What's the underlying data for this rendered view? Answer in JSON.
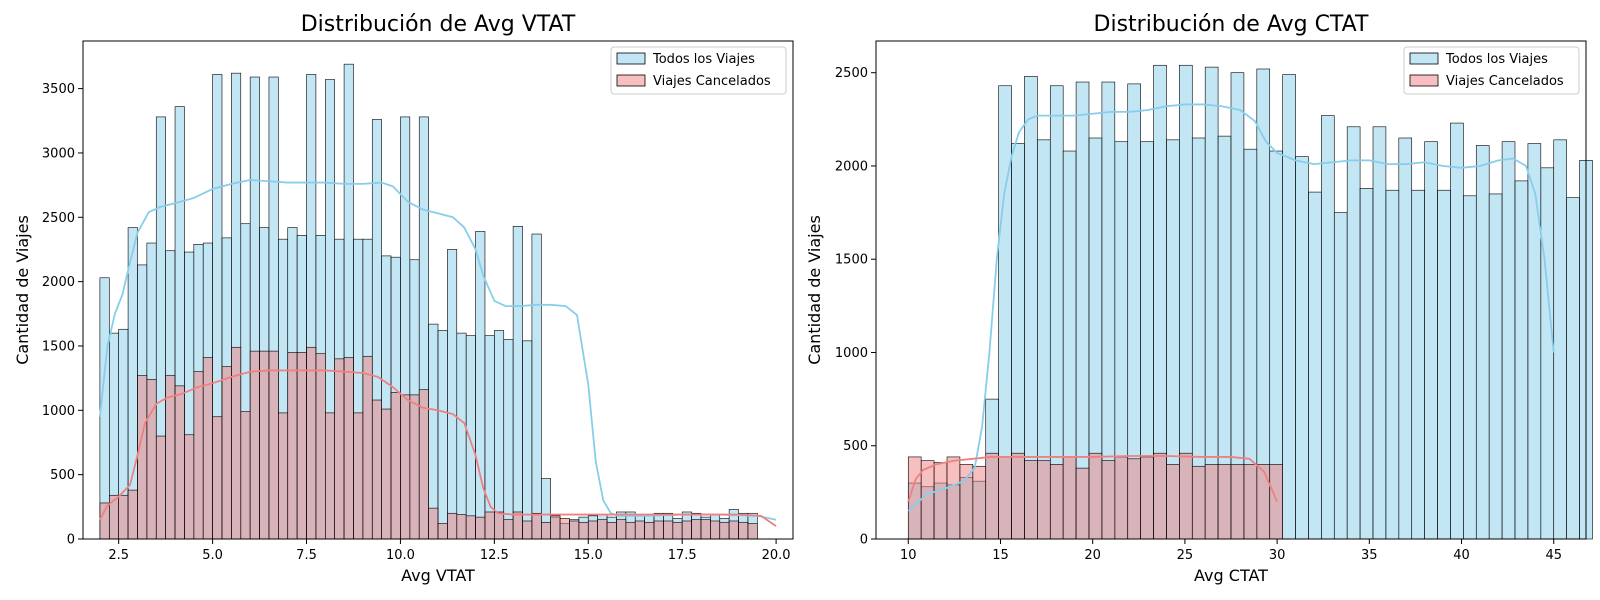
{
  "chart_data": [
    {
      "type": "histogram",
      "title": "Distribución de Avg VTAT",
      "xlabel": "Avg VTAT",
      "ylabel": "Cantidad de Viajes",
      "xlim": [
        1.55,
        20.45
      ],
      "ylim": [
        0,
        3870
      ],
      "xticks": [
        2.5,
        5.0,
        7.5,
        10.0,
        12.5,
        15.0,
        17.5,
        20.0
      ],
      "xtick_labels": [
        "2.5",
        "5.0",
        "7.5",
        "10.0",
        "12.5",
        "15.0",
        "17.5",
        "20.0"
      ],
      "yticks": [
        0,
        500,
        1000,
        1500,
        2000,
        2500,
        3000,
        3500
      ],
      "bin_start": 2.0,
      "bin_width": 0.25,
      "legend_position": "upper-right",
      "grid": false,
      "series": [
        {
          "name": "Todos los Viajes",
          "color": "#87CEEB",
          "values": [
            2030,
            1600,
            1630,
            2420,
            2130,
            2300,
            3280,
            2240,
            3360,
            2230,
            2290,
            2300,
            3610,
            2340,
            3620,
            2450,
            3590,
            2420,
            3590,
            2330,
            2420,
            2360,
            3610,
            2360,
            3570,
            2330,
            3690,
            2330,
            2330,
            3260,
            2200,
            2190,
            3280,
            2170,
            3280,
            1670,
            1620,
            2250,
            1600,
            1580,
            2390,
            1580,
            1620,
            1550,
            2430,
            1540,
            2370,
            470,
            170,
            120,
            150,
            170,
            180,
            190,
            170,
            210,
            210,
            180,
            190,
            200,
            200,
            160,
            210,
            200,
            170,
            190,
            160,
            230,
            200,
            200
          ],
          "kde": [
            [
              2.0,
              950
            ],
            [
              2.2,
              1500
            ],
            [
              2.4,
              1750
            ],
            [
              2.6,
              1900
            ],
            [
              2.8,
              2150
            ],
            [
              3.0,
              2380
            ],
            [
              3.3,
              2540
            ],
            [
              3.6,
              2580
            ],
            [
              4.0,
              2610
            ],
            [
              4.5,
              2650
            ],
            [
              5.0,
              2720
            ],
            [
              5.5,
              2760
            ],
            [
              6.0,
              2790
            ],
            [
              6.5,
              2780
            ],
            [
              7.0,
              2770
            ],
            [
              7.5,
              2770
            ],
            [
              8.0,
              2770
            ],
            [
              8.5,
              2760
            ],
            [
              9.0,
              2760
            ],
            [
              9.5,
              2770
            ],
            [
              9.8,
              2740
            ],
            [
              10.2,
              2620
            ],
            [
              10.6,
              2560
            ],
            [
              11.0,
              2530
            ],
            [
              11.4,
              2500
            ],
            [
              11.7,
              2420
            ],
            [
              12.0,
              2250
            ],
            [
              12.2,
              2050
            ],
            [
              12.5,
              1850
            ],
            [
              12.8,
              1810
            ],
            [
              13.2,
              1810
            ],
            [
              13.6,
              1820
            ],
            [
              14.0,
              1820
            ],
            [
              14.4,
              1810
            ],
            [
              14.7,
              1740
            ],
            [
              15.0,
              1200
            ],
            [
              15.2,
              600
            ],
            [
              15.4,
              300
            ],
            [
              15.6,
              200
            ],
            [
              15.8,
              180
            ],
            [
              16.5,
              180
            ],
            [
              17.5,
              190
            ],
            [
              18.5,
              190
            ],
            [
              19.5,
              180
            ],
            [
              20.0,
              150
            ]
          ]
        },
        {
          "name": "Viajes Cancelados",
          "color": "#F08080",
          "values": [
            280,
            340,
            340,
            380,
            1270,
            1240,
            800,
            1270,
            1190,
            810,
            1300,
            1410,
            950,
            1340,
            1490,
            990,
            1460,
            1460,
            1460,
            980,
            1450,
            1450,
            1490,
            1440,
            980,
            1400,
            1410,
            980,
            1420,
            1080,
            1010,
            1140,
            1120,
            1120,
            1160,
            240,
            120,
            200,
            190,
            180,
            170,
            210,
            210,
            150,
            210,
            140,
            200,
            130,
            180,
            160,
            140,
            130,
            140,
            150,
            130,
            150,
            130,
            140,
            130,
            140,
            140,
            130,
            140,
            150,
            150,
            140,
            130,
            140,
            130,
            120
          ],
          "kde": [
            [
              2.0,
              150
            ],
            [
              2.2,
              260
            ],
            [
              2.5,
              330
            ],
            [
              2.8,
              420
            ],
            [
              3.0,
              650
            ],
            [
              3.2,
              900
            ],
            [
              3.5,
              1050
            ],
            [
              3.8,
              1100
            ],
            [
              4.2,
              1130
            ],
            [
              4.6,
              1180
            ],
            [
              5.0,
              1210
            ],
            [
              5.5,
              1260
            ],
            [
              6.0,
              1300
            ],
            [
              6.5,
              1310
            ],
            [
              7.0,
              1310
            ],
            [
              7.5,
              1310
            ],
            [
              8.0,
              1310
            ],
            [
              8.5,
              1300
            ],
            [
              9.0,
              1290
            ],
            [
              9.4,
              1260
            ],
            [
              9.8,
              1180
            ],
            [
              10.2,
              1080
            ],
            [
              10.6,
              1020
            ],
            [
              11.0,
              1000
            ],
            [
              11.4,
              970
            ],
            [
              11.7,
              900
            ],
            [
              12.0,
              650
            ],
            [
              12.2,
              400
            ],
            [
              12.4,
              250
            ],
            [
              12.6,
              200
            ],
            [
              13.0,
              190
            ],
            [
              14.0,
              190
            ],
            [
              15.0,
              190
            ],
            [
              16.0,
              190
            ],
            [
              17.0,
              190
            ],
            [
              18.0,
              190
            ],
            [
              19.0,
              190
            ],
            [
              19.6,
              180
            ],
            [
              20.0,
              100
            ]
          ]
        }
      ]
    },
    {
      "type": "histogram",
      "title": "Distribución de Avg CTAT",
      "xlabel": "Avg CTAT",
      "ylabel": "Cantidad de Viajes",
      "xlim": [
        8.25,
        46.75
      ],
      "ylim": [
        0,
        2670
      ],
      "xticks": [
        10,
        15,
        20,
        25,
        30,
        35,
        40,
        45
      ],
      "xtick_labels": [
        "10",
        "15",
        "20",
        "25",
        "30",
        "35",
        "40",
        "45"
      ],
      "yticks": [
        0,
        500,
        1000,
        1500,
        2000,
        2500
      ],
      "bin_start": 10.0,
      "bin_width": 0.7,
      "legend_position": "upper-right",
      "grid": false,
      "series": [
        {
          "name": "Todos los Viajes",
          "color": "#87CEEB",
          "values": [
            300,
            280,
            300,
            290,
            330,
            310,
            750,
            2430,
            2120,
            2480,
            2140,
            2430,
            2080,
            2450,
            2150,
            2450,
            2130,
            2440,
            2130,
            2540,
            2140,
            2540,
            2150,
            2530,
            2160,
            2500,
            2090,
            2520,
            2080,
            2490,
            2050,
            1860,
            2270,
            1750,
            2210,
            1880,
            2210,
            1870,
            2150,
            1870,
            2130,
            1870,
            2230,
            1840,
            2110,
            1850,
            2130,
            1920,
            2120,
            1990,
            2140,
            1830,
            2030
          ],
          "kde": [
            [
              10.0,
              150
            ],
            [
              11.0,
              240
            ],
            [
              12.0,
              270
            ],
            [
              13.0,
              310
            ],
            [
              13.6,
              380
            ],
            [
              14.0,
              600
            ],
            [
              14.4,
              1000
            ],
            [
              14.8,
              1500
            ],
            [
              15.2,
              1850
            ],
            [
              15.6,
              2050
            ],
            [
              16.0,
              2180
            ],
            [
              16.5,
              2250
            ],
            [
              17.0,
              2270
            ],
            [
              18.0,
              2270
            ],
            [
              19.0,
              2270
            ],
            [
              20.0,
              2280
            ],
            [
              21.0,
              2290
            ],
            [
              22.0,
              2290
            ],
            [
              23.0,
              2300
            ],
            [
              24.0,
              2320
            ],
            [
              25.0,
              2330
            ],
            [
              26.0,
              2330
            ],
            [
              27.0,
              2320
            ],
            [
              28.0,
              2300
            ],
            [
              28.8,
              2240
            ],
            [
              29.4,
              2130
            ],
            [
              30.0,
              2070
            ],
            [
              31.0,
              2030
            ],
            [
              32.0,
              2010
            ],
            [
              33.0,
              2020
            ],
            [
              34.0,
              2030
            ],
            [
              35.0,
              2030
            ],
            [
              36.0,
              2010
            ],
            [
              37.0,
              2010
            ],
            [
              38.0,
              2020
            ],
            [
              39.0,
              2000
            ],
            [
              40.0,
              1990
            ],
            [
              41.0,
              2000
            ],
            [
              42.0,
              2030
            ],
            [
              42.8,
              2040
            ],
            [
              43.5,
              2000
            ],
            [
              44.0,
              1850
            ],
            [
              44.5,
              1500
            ],
            [
              45.0,
              1000
            ]
          ]
        },
        {
          "name": "Viajes Cancelados",
          "color": "#F08080",
          "values": [
            440,
            420,
            410,
            440,
            400,
            390,
            460,
            440,
            460,
            420,
            420,
            400,
            440,
            380,
            460,
            420,
            440,
            430,
            440,
            460,
            400,
            460,
            390,
            400,
            400,
            400,
            400,
            400,
            400
          ],
          "kde": [
            [
              10.0,
              200
            ],
            [
              10.4,
              320
            ],
            [
              10.8,
              370
            ],
            [
              11.5,
              400
            ],
            [
              12.5,
              420
            ],
            [
              13.5,
              430
            ],
            [
              14.5,
              440
            ],
            [
              16.0,
              440
            ],
            [
              18.0,
              440
            ],
            [
              20.0,
              440
            ],
            [
              22.0,
              445
            ],
            [
              24.0,
              445
            ],
            [
              26.0,
              440
            ],
            [
              27.5,
              440
            ],
            [
              28.5,
              430
            ],
            [
              29.3,
              360
            ],
            [
              30.0,
              200
            ]
          ]
        }
      ]
    }
  ]
}
